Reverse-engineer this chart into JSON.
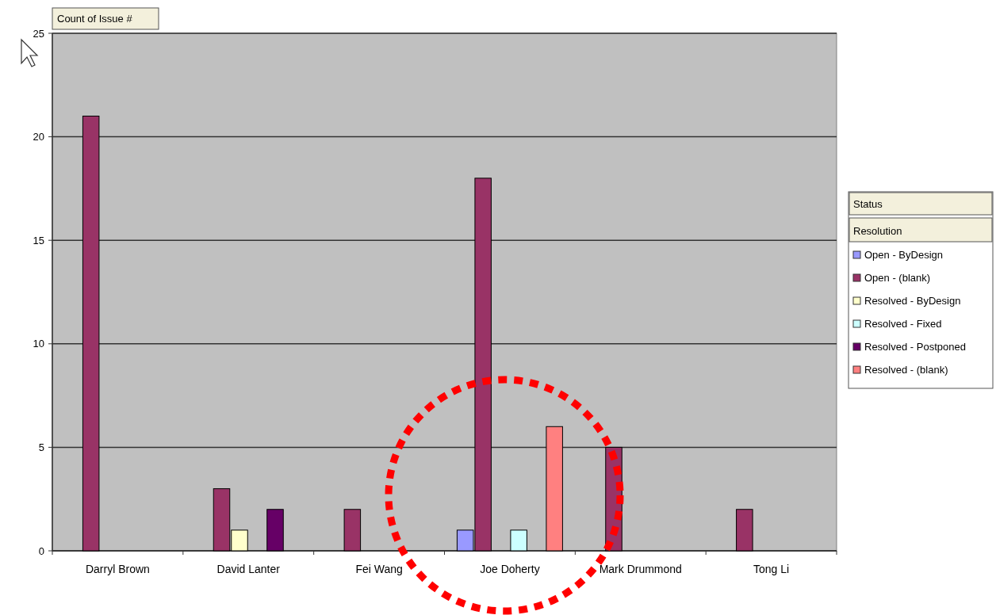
{
  "chart_data": {
    "type": "bar",
    "categories": [
      "Darryl Brown",
      "David Lanter",
      "Fei Wang",
      "Joe Doherty",
      "Mark Drummond",
      "Tong Li"
    ],
    "series": [
      {
        "name": "Open - ByDesign",
        "color": "#9999ff",
        "values": [
          null,
          null,
          null,
          1,
          null,
          null
        ]
      },
      {
        "name": "Open - (blank)",
        "color": "#993366",
        "values": [
          21,
          3,
          2,
          18,
          5,
          2
        ]
      },
      {
        "name": "Resolved - ByDesign",
        "color": "#ffffcc",
        "values": [
          null,
          1,
          null,
          null,
          null,
          null
        ]
      },
      {
        "name": "Resolved - Fixed",
        "color": "#ccffff",
        "values": [
          null,
          null,
          null,
          1,
          null,
          null
        ]
      },
      {
        "name": "Resolved - Postponed",
        "color": "#660066",
        "values": [
          null,
          2,
          null,
          null,
          null,
          null
        ]
      },
      {
        "name": "Resolved - (blank)",
        "color": "#ff8080",
        "values": [
          null,
          null,
          null,
          6,
          null,
          null
        ]
      }
    ],
    "ylim": [
      0,
      25
    ],
    "yticks": [
      0,
      5,
      10,
      15,
      20,
      25
    ],
    "grid": "y",
    "legend": "right",
    "legend_title": "Status",
    "annotations": [
      "Count of Issue #",
      "Resolution"
    ]
  }
}
